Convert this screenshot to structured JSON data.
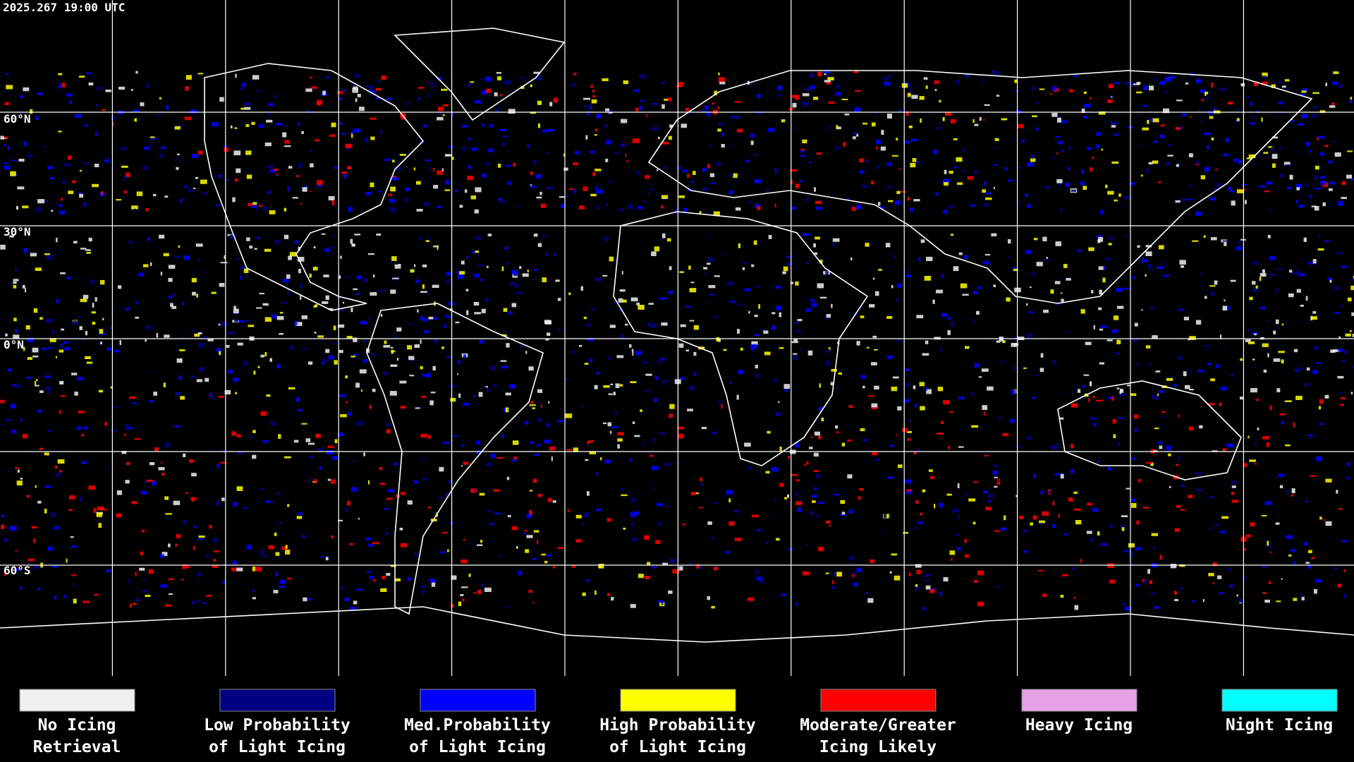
{
  "header": {
    "timestamp": "2025.267 19:00 UTC"
  },
  "map": {
    "lat_labels": [
      "60°N",
      "30°N",
      "0°N",
      "60°S"
    ]
  },
  "legend": {
    "items": [
      {
        "color": "#f0f0f0",
        "lines": [
          "No Icing",
          "Retrieval"
        ]
      },
      {
        "color": "#000080",
        "lines": [
          "Low Probability",
          "of Light Icing"
        ]
      },
      {
        "color": "#0000ff",
        "lines": [
          "Med.Probability",
          "of Light Icing"
        ]
      },
      {
        "color": "#ffff00",
        "lines": [
          "High Probability",
          "of Light Icing"
        ]
      },
      {
        "color": "#ff0000",
        "lines": [
          "Moderate/Greater",
          "Icing Likely"
        ]
      },
      {
        "color": "#e6a0e6",
        "lines": [
          "Heavy Icing"
        ]
      },
      {
        "color": "#00ffff",
        "lines": [
          "Night Icing"
        ]
      }
    ]
  }
}
